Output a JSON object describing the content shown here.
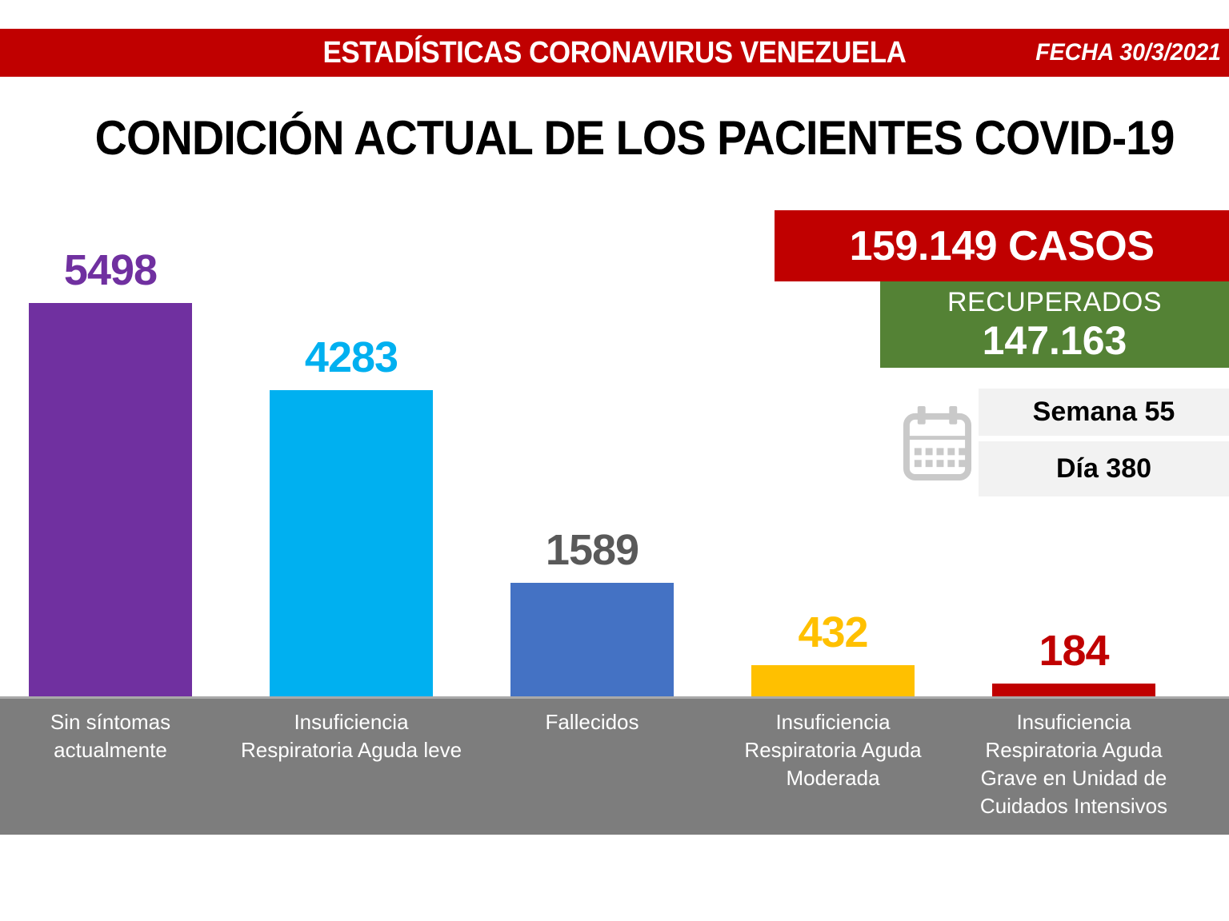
{
  "header": {
    "title": "ESTADÍSTICAS CORONAVIRUS VENEZUELA",
    "date_label": "FECHA 30/3/2021"
  },
  "page_title": "CONDICIÓN ACTUAL DE LOS PACIENTES COVID-19",
  "summary": {
    "cases_label": "159.149 CASOS",
    "recovered_title": "RECUPERADOS",
    "recovered_value": "147.163",
    "week_label": "Semana 55",
    "day_label": "Día 380",
    "calendar_icon": "calendar-icon"
  },
  "colors": {
    "header_red": "#C00000",
    "recovered_green": "#548235",
    "strip_gray": "#7D7D7D",
    "pill_gray": "#F2F2F2",
    "calendar_gray": "#C9C9C9",
    "title_black": "#000000",
    "white": "#FFFFFF"
  },
  "chart_data": {
    "type": "bar",
    "title": "CONDICIÓN ACTUAL DE LOS PACIENTES COVID-19",
    "categories": [
      "Sin síntomas actualmente",
      "Insuficiencia Respiratoria Aguda leve",
      "Fallecidos",
      "Insuficiencia Respiratoria Aguda Moderada",
      "Insuficiencia Respiratoria Aguda Grave en Unidad de Cuidados Intensivos"
    ],
    "category_lines": [
      [
        "Sin síntomas",
        "actualmente"
      ],
      [
        "Insuficiencia",
        "Respiratoria Aguda leve"
      ],
      [
        "Fallecidos"
      ],
      [
        "Insuficiencia",
        "Respiratoria Aguda",
        "Moderada"
      ],
      [
        "Insuficiencia",
        "Respiratoria Aguda",
        "Grave en Unidad de",
        "Cuidados Intensivos"
      ]
    ],
    "values": [
      5498,
      4283,
      1589,
      432,
      184
    ],
    "bar_colors": [
      "#7030A0",
      "#00B0F0",
      "#4472C4",
      "#FFC000",
      "#C00000"
    ],
    "value_label_colors": [
      "#7030A0",
      "#00B0F0",
      "#595959",
      "#FFC000",
      "#C00000"
    ],
    "xlabel": "",
    "ylabel": "",
    "ylim": [
      0,
      5500
    ],
    "grid": false,
    "legend": false,
    "value_labels": true
  }
}
